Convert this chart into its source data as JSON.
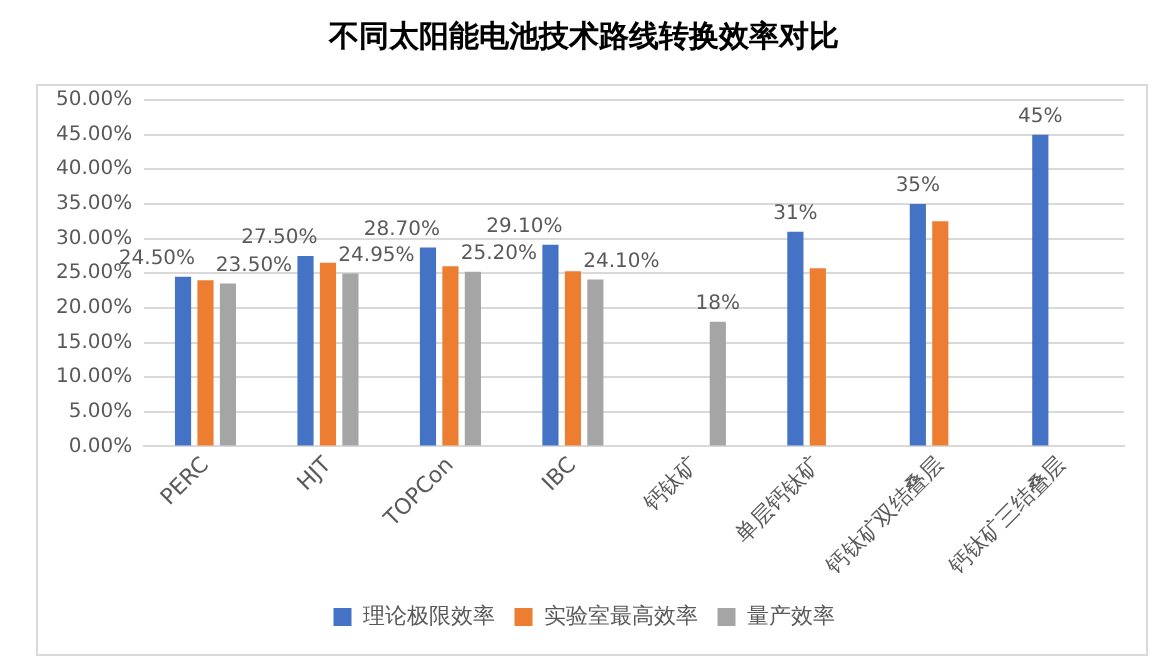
{
  "chart_data": {
    "type": "bar",
    "title": "不同太阳能电池技术路线转换效率对比",
    "categories": [
      "PERC",
      "HJT",
      "TOPCon",
      "IBC",
      "钙钛矿",
      "单层钙钛矿",
      "钙钛矿双结叠层",
      "钙钛矿三结叠层"
    ],
    "series": [
      {
        "name": "理论极限效率",
        "color": "#4472c4",
        "values": [
          24.5,
          27.5,
          28.7,
          29.1,
          null,
          31,
          35,
          45
        ],
        "value_labels": [
          "24.50%",
          "27.50%",
          "28.70%",
          "29.10%",
          null,
          "31%",
          "35%",
          "45%"
        ]
      },
      {
        "name": "实验室最高效率",
        "color": "#ed7d31",
        "values": [
          24.0,
          26.5,
          26.0,
          25.3,
          null,
          25.7,
          32.5,
          null
        ]
      },
      {
        "name": "量产效率",
        "color": "#a5a5a5",
        "values": [
          23.5,
          24.95,
          25.2,
          24.1,
          18,
          null,
          null,
          null
        ],
        "value_labels": [
          "23.50%",
          "24.95%",
          "25.20%",
          "24.10%",
          "18%",
          null,
          null,
          null
        ]
      }
    ],
    "ylim": [
      0,
      50
    ],
    "yticks": [
      {
        "value": 0,
        "label": "0.00%"
      },
      {
        "value": 5,
        "label": "5.00%"
      },
      {
        "value": 10,
        "label": "10.00%"
      },
      {
        "value": 15,
        "label": "15.00%"
      },
      {
        "value": 20,
        "label": "20.00%"
      },
      {
        "value": 25,
        "label": "25.00%"
      },
      {
        "value": 30,
        "label": "30.00%"
      },
      {
        "value": 35,
        "label": "35.00%"
      },
      {
        "value": 40,
        "label": "40.00%"
      },
      {
        "value": 45,
        "label": "45.00%"
      },
      {
        "value": 50,
        "label": "50.00%"
      }
    ],
    "grid": "y",
    "legend": "bottom"
  }
}
